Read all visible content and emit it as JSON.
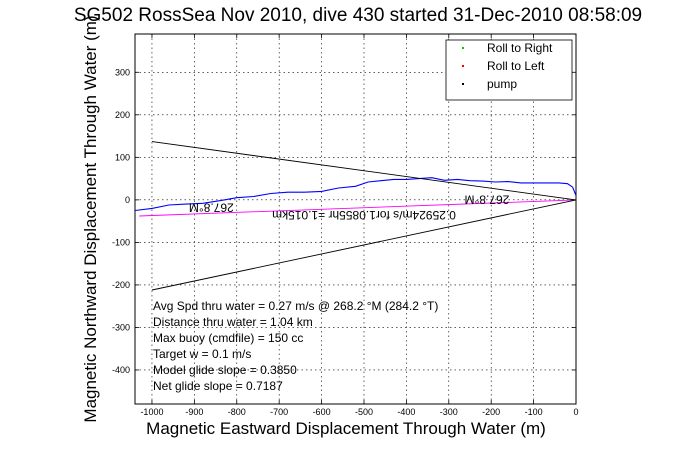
{
  "chart_data": {
    "type": "line",
    "title": "SG502 RossSea Nov 2010, dive 430 started 31-Dec-2010 08:58:09",
    "xlabel": "Magnetic Eastward Displacement Through Water (m)",
    "ylabel": "Magnetic Northward Displacement Through Water (m)",
    "xlim": [
      -1040,
      0
    ],
    "ylim": [
      -480,
      390
    ],
    "xticks": [
      -1000,
      -900,
      -800,
      -700,
      -600,
      -500,
      -400,
      -300,
      -200,
      -100,
      0
    ],
    "xtick_labels": [
      "-1000",
      "-900",
      "-800",
      "-700",
      "-600",
      "-500",
      "-400",
      "-300",
      "-200",
      "-100",
      "0"
    ],
    "yticks": [
      -400,
      -300,
      -200,
      -100,
      0,
      100,
      200,
      300
    ],
    "ytick_labels": [
      "-400",
      "-300",
      "-200",
      "-100",
      "0",
      "100",
      "200",
      "300"
    ],
    "grid": true,
    "legend_position": "top-right",
    "legend": [
      {
        "label": "Roll to Right",
        "color": "#00cc00"
      },
      {
        "label": "Roll to Left",
        "color": "#ff0000"
      },
      {
        "label": "pump",
        "color": "#000000"
      }
    ],
    "series": [
      {
        "role": "track",
        "color": "#0000ff",
        "x": [
          -1040,
          -1000,
          -960,
          -920,
          -880,
          -840,
          -800,
          -760,
          -720,
          -680,
          -640,
          -600,
          -560,
          -520,
          -490,
          -460,
          -430,
          -400,
          -370,
          -340,
          -310,
          -280,
          -250,
          -220,
          -190,
          -160,
          -130,
          -100,
          -70,
          -40,
          -20,
          -8,
          0
        ],
        "y": [
          -25,
          -20,
          -12,
          -10,
          -8,
          -2,
          5,
          8,
          15,
          18,
          18,
          20,
          28,
          32,
          42,
          45,
          48,
          48,
          50,
          52,
          46,
          48,
          45,
          44,
          42,
          43,
          40,
          40,
          40,
          40,
          38,
          30,
          10
        ]
      },
      {
        "role": "depth-averaged-current",
        "color": "#ff00ff",
        "x": [
          -1030,
          0
        ],
        "y": [
          -38,
          0
        ]
      },
      {
        "role": "heading-line-upper",
        "color": "#000000",
        "x": [
          -1000,
          0
        ],
        "y": [
          137,
          0
        ]
      },
      {
        "role": "heading-line-lower",
        "color": "#000000",
        "x": [
          -1000,
          0
        ],
        "y": [
          -212,
          0
        ]
      }
    ],
    "annotations": [
      {
        "text": "267.8°M",
        "x": -860,
        "y": -8,
        "rotation": 180
      },
      {
        "text": "267.8°M",
        "x": -210,
        "y": 10,
        "rotation": 180
      },
      {
        "text": "0.25924m/s for1.0855hr =1.015km",
        "x": -500,
        "y": -26,
        "rotation": 180
      }
    ],
    "notes": [
      "Avg Spd thru water =  0.27 m/s @ 268.2    °M (284.2 °T)",
      "Distance thru water =  1.04 km",
      "Max buoy (cmdfile) = 150 cc",
      "Target w = 0.1 m/s",
      "Model glide slope = 0.3850",
      "Net glide slope = 0.7187"
    ]
  }
}
